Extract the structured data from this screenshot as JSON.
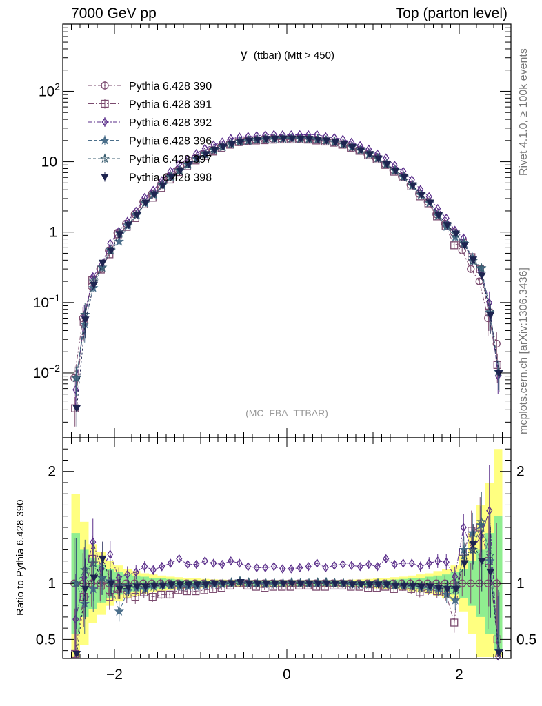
{
  "header": {
    "left_title": "7000 GeV pp",
    "right_title": "Top (parton level)"
  },
  "side_labels": {
    "rivet": "Rivet 4.1.0, ≥ 100k events",
    "mcplots": "mcplots.cern.ch [arXiv:1306.3436]"
  },
  "chart_data": {
    "type": "line",
    "title_main": "y",
    "title_sub": "(ttbar) (Mtt > 450)",
    "watermark": "(MC_FBA_TTBAR)",
    "ylabel_ratio": "Ratio to Pythia 6.428 390",
    "xlim": [
      -2.6,
      2.6
    ],
    "ylim_main": [
      0.0012,
      900
    ],
    "ylim_ratio": [
      0.33,
      2.3
    ],
    "x_ticks": [
      -2,
      0,
      2
    ],
    "y_ticks_main": [
      {
        "value": 0.01,
        "label": "10",
        "exp": "−2"
      },
      {
        "value": 0.1,
        "label": "10",
        "exp": "−1"
      },
      {
        "value": 1,
        "label": "1",
        "exp": ""
      },
      {
        "value": 10,
        "label": "10",
        "exp": ""
      },
      {
        "value": 100,
        "label": "10",
        "exp": "2"
      }
    ],
    "y_ticks_ratio": [
      {
        "value": 0.5,
        "label": "0.5"
      },
      {
        "value": 1,
        "label": "1"
      },
      {
        "value": 2,
        "label": "2"
      }
    ],
    "bin_width": 0.1,
    "x": [
      -2.45,
      -2.35,
      -2.25,
      -2.15,
      -2.05,
      -1.95,
      -1.85,
      -1.75,
      -1.65,
      -1.55,
      -1.45,
      -1.35,
      -1.25,
      -1.15,
      -1.05,
      -0.95,
      -0.85,
      -0.75,
      -0.65,
      -0.55,
      -0.45,
      -0.35,
      -0.25,
      -0.15,
      -0.05,
      0.05,
      0.15,
      0.25,
      0.35,
      0.45,
      0.55,
      0.65,
      0.75,
      0.85,
      0.95,
      1.05,
      1.15,
      1.25,
      1.35,
      1.45,
      1.55,
      1.65,
      1.75,
      1.85,
      1.95,
      2.05,
      2.15,
      2.25,
      2.35,
      2.45
    ],
    "reference_values": [
      0.0085,
      0.06,
      0.17,
      0.3,
      0.55,
      0.98,
      1.32,
      1.8,
      2.7,
      3.5,
      4.7,
      6.2,
      7.6,
      9.3,
      11.2,
      12.9,
      14.7,
      16.3,
      17.8,
      19.0,
      19.9,
      20.6,
      21.0,
      21.2,
      21.3,
      21.3,
      21.2,
      21.0,
      20.6,
      19.9,
      19.0,
      17.8,
      16.3,
      14.7,
      12.9,
      11.2,
      9.3,
      7.6,
      6.2,
      4.7,
      3.5,
      2.7,
      1.8,
      1.32,
      1.0,
      0.55,
      0.3,
      0.2,
      0.06,
      0.026
    ],
    "band_green": [
      0.45,
      0.3,
      0.23,
      0.17,
      0.13,
      0.1,
      0.08,
      0.07,
      0.06,
      0.05,
      0.045,
      0.04,
      0.035,
      0.03,
      0.028,
      0.026,
      0.024,
      0.022,
      0.02,
      0.02,
      0.02,
      0.02,
      0.02,
      0.02,
      0.02,
      0.02,
      0.02,
      0.02,
      0.02,
      0.02,
      0.02,
      0.02,
      0.022,
      0.024,
      0.026,
      0.028,
      0.03,
      0.035,
      0.04,
      0.045,
      0.05,
      0.06,
      0.07,
      0.08,
      0.1,
      0.13,
      0.2,
      0.3,
      0.45,
      0.6
    ],
    "band_yellow": [
      0.8,
      0.55,
      0.35,
      0.28,
      0.2,
      0.16,
      0.13,
      0.11,
      0.09,
      0.08,
      0.07,
      0.06,
      0.055,
      0.05,
      0.045,
      0.04,
      0.036,
      0.034,
      0.032,
      0.03,
      0.03,
      0.03,
      0.03,
      0.03,
      0.03,
      0.03,
      0.03,
      0.03,
      0.03,
      0.03,
      0.03,
      0.03,
      0.034,
      0.036,
      0.04,
      0.045,
      0.05,
      0.055,
      0.06,
      0.07,
      0.08,
      0.09,
      0.11,
      0.13,
      0.16,
      0.25,
      0.45,
      0.7,
      0.9,
      1.2
    ],
    "series": [
      {
        "name": "Pythia 6.428 390",
        "color": "#7a4a6e",
        "marker": "circle",
        "dash": "6,3,2,3",
        "ratio": [
          1,
          1,
          1,
          1,
          1,
          1,
          1,
          1,
          1,
          1,
          1,
          1,
          1,
          1,
          1,
          1,
          1,
          1,
          1,
          1,
          1,
          1,
          1,
          1,
          1,
          1,
          1,
          1,
          1,
          1,
          1,
          1,
          1,
          1,
          1,
          1,
          1,
          1,
          1,
          1,
          1,
          1,
          1,
          1,
          1,
          1,
          1,
          1,
          1,
          1
        ]
      },
      {
        "name": "Pythia 6.428 391",
        "color": "#7a4a6e",
        "marker": "square",
        "dash": "8,3,2,3",
        "ratio": [
          0.37,
          0.88,
          1.22,
          0.98,
          0.88,
          0.95,
          0.9,
          0.88,
          0.92,
          0.88,
          0.9,
          0.9,
          0.94,
          0.93,
          0.93,
          0.94,
          0.95,
          0.96,
          0.98,
          1.0,
          0.98,
          0.97,
          0.96,
          0.97,
          0.97,
          0.97,
          0.98,
          0.98,
          0.97,
          0.97,
          0.98,
          0.98,
          0.97,
          0.97,
          0.96,
          0.96,
          0.97,
          0.95,
          0.97,
          0.95,
          0.92,
          0.95,
          0.93,
          0.92,
          0.65,
          1.28,
          1.47,
          1.5,
          1.2,
          0.5
        ]
      },
      {
        "name": "Pythia 6.428 392",
        "color": "#5a2e8a",
        "marker": "diamond",
        "dash": "6,2,2,2",
        "ratio": [
          0.68,
          1.05,
          1.37,
          1.13,
          1.26,
          1.05,
          1.08,
          1.1,
          1.15,
          1.12,
          1.15,
          1.18,
          1.22,
          1.17,
          1.17,
          1.2,
          1.18,
          1.17,
          1.2,
          1.18,
          1.15,
          1.14,
          1.14,
          1.15,
          1.13,
          1.13,
          1.14,
          1.15,
          1.18,
          1.14,
          1.16,
          1.17,
          1.16,
          1.15,
          1.17,
          1.15,
          1.22,
          1.17,
          1.18,
          1.18,
          1.15,
          1.18,
          1.2,
          1.19,
          1.06,
          1.5,
          1.3,
          1.42,
          1.65,
          0.35
        ]
      },
      {
        "name": "Pythia 6.428 396",
        "color": "#4a6e8a",
        "marker": "star",
        "dash": "5,3",
        "ratio": [
          1.0,
          0.82,
          0.95,
          1.05,
          1.02,
          0.75,
          0.93,
          0.96,
          0.95,
          0.97,
          0.98,
          0.98,
          0.97,
          0.97,
          0.97,
          0.98,
          0.99,
          0.99,
          1.0,
          1.02,
          1.0,
          1.0,
          0.99,
          0.99,
          1.0,
          1.01,
          1.0,
          1.0,
          1.0,
          1.01,
          1.0,
          1.0,
          0.99,
          0.99,
          0.99,
          1.0,
          0.99,
          0.98,
          0.98,
          0.97,
          0.96,
          0.96,
          0.95,
          0.9,
          0.85,
          1.3,
          1.45,
          1.52,
          1.2,
          0.4
        ]
      },
      {
        "name": "Pythia 6.428 397",
        "color": "#3a5e70",
        "marker": "openstar",
        "dash": "4,3",
        "ratio": [
          1.0,
          1.12,
          1.18,
          1.05,
          1.0,
          0.98,
          0.98,
          0.99,
          0.98,
          0.99,
          0.99,
          0.99,
          0.99,
          0.99,
          0.99,
          1.0,
          1.0,
          1.0,
          1.01,
          1.02,
          1.01,
          1.0,
          1.0,
          1.0,
          1.0,
          1.01,
          1.0,
          1.0,
          1.01,
          1.01,
          1.0,
          1.0,
          1.0,
          0.99,
          0.99,
          1.0,
          0.99,
          0.99,
          0.99,
          0.98,
          0.98,
          0.98,
          0.97,
          0.96,
          0.95,
          1.25,
          1.3,
          1.55,
          1.25,
          0.4
        ]
      },
      {
        "name": "Pythia 6.428 398",
        "color": "#1e2450",
        "marker": "triangle",
        "dash": "3,3",
        "ratio": [
          0.37,
          0.95,
          1.05,
          1.22,
          1.0,
          0.95,
          0.96,
          0.97,
          0.97,
          0.98,
          0.98,
          0.99,
          0.99,
          0.99,
          0.99,
          0.99,
          1.0,
          1.0,
          1.0,
          1.01,
          1.0,
          1.0,
          1.0,
          1.0,
          1.0,
          1.0,
          1.0,
          1.0,
          1.0,
          1.0,
          1.0,
          1.0,
          0.99,
          0.99,
          0.99,
          0.99,
          0.99,
          0.98,
          0.98,
          0.98,
          0.97,
          0.97,
          0.96,
          0.95,
          0.95,
          1.18,
          1.35,
          1.2,
          1.1,
          0.38
        ]
      }
    ]
  }
}
